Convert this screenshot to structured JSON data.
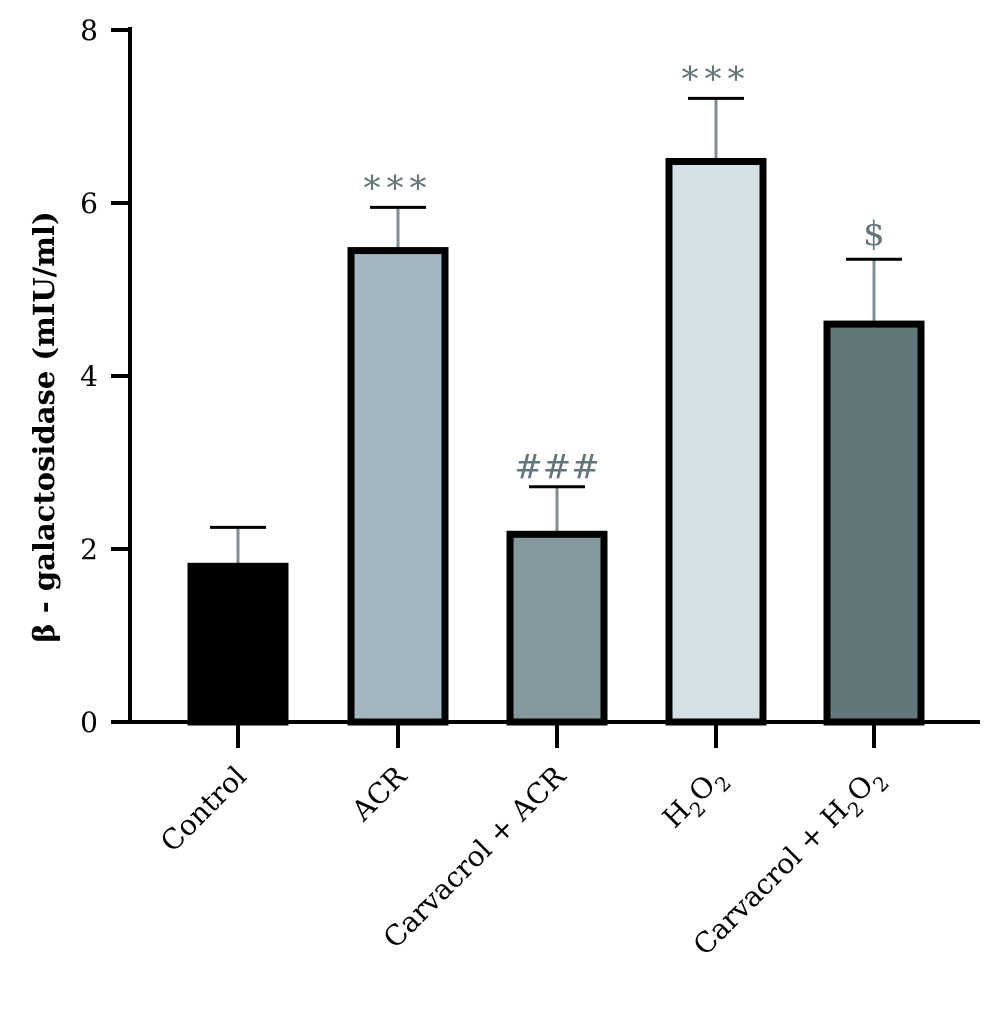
{
  "chart_data": {
    "type": "bar",
    "title": "",
    "ylabel": "β - galactosidase (mIU/ml)",
    "xlabel": "",
    "ylim": [
      0,
      8
    ],
    "yticks": [
      0,
      2,
      4,
      6,
      8
    ],
    "grid": false,
    "categories": [
      {
        "label": "Control"
      },
      {
        "label": "ACR"
      },
      {
        "label": "Carvacrol + ACR"
      },
      {
        "label": "H",
        "sub1": "2",
        "mid": "O",
        "sub2": "2"
      },
      {
        "label": "Carvacrol + H",
        "sub1": "2",
        "mid": "O",
        "sub2": "2"
      }
    ],
    "values": [
      1.8,
      5.45,
      2.17,
      6.48,
      4.6
    ],
    "errors": [
      0.45,
      0.5,
      0.55,
      0.73,
      0.75
    ],
    "significance": [
      "",
      "***",
      "###",
      "***",
      "$"
    ],
    "colors": {
      "fills": [
        "#000000",
        "#a3b6c2",
        "#84999e",
        "#d5dfe6",
        "#61777a"
      ],
      "edge": "#000000",
      "error_bar": "#7f8e93",
      "annotation": "#62757b"
    }
  }
}
